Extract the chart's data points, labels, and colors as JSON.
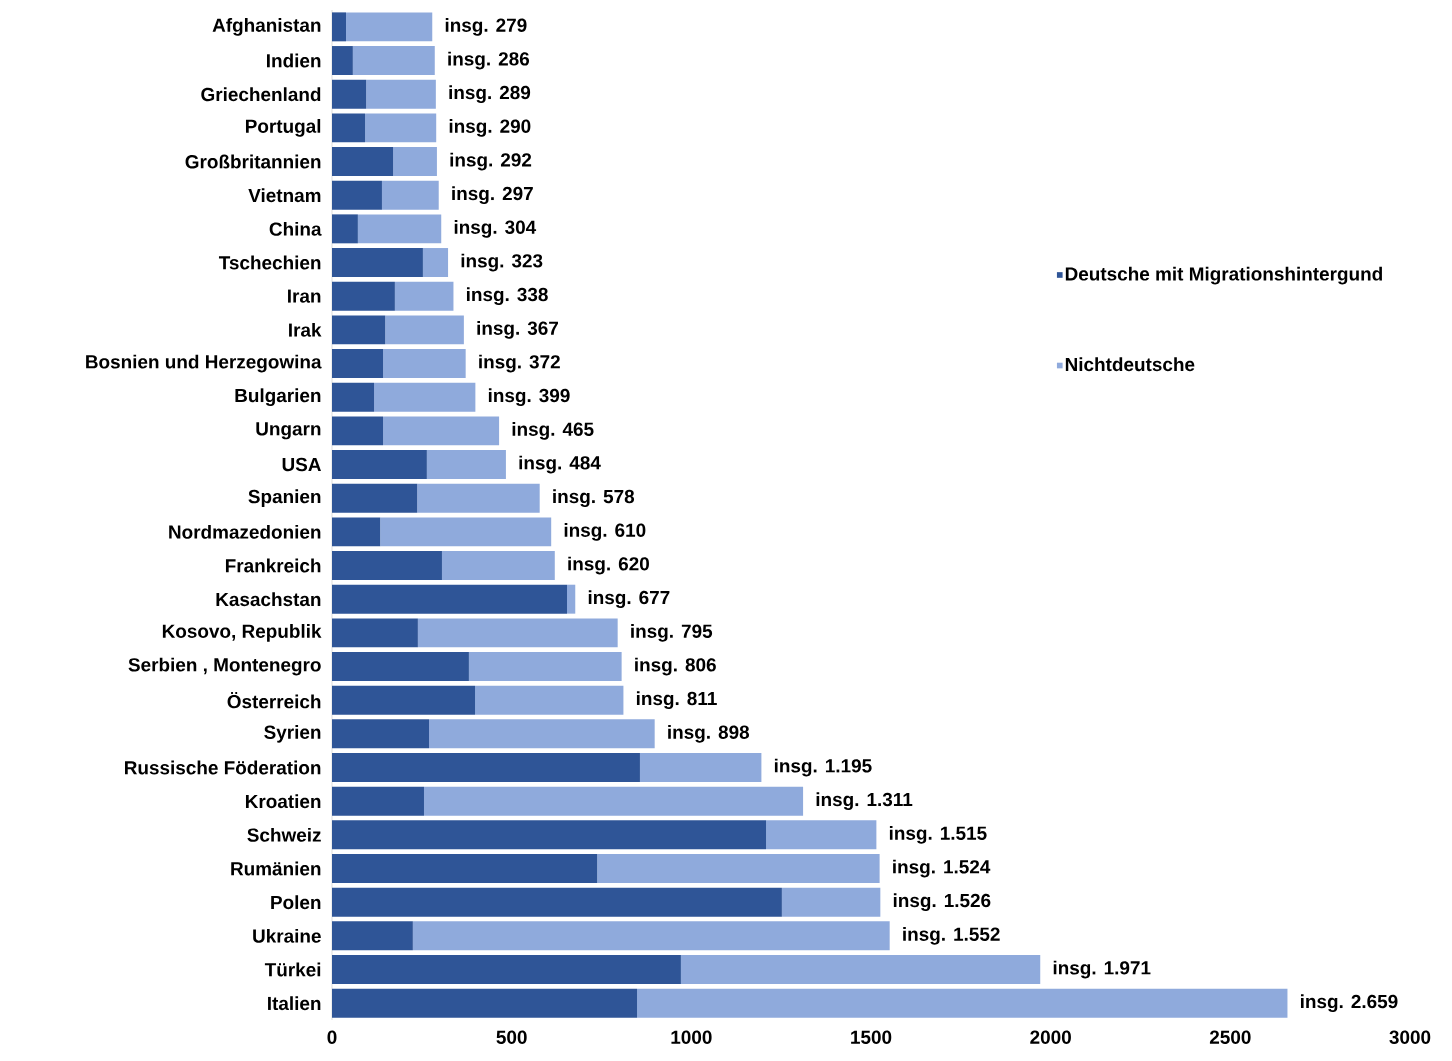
{
  "chart_data": {
    "type": "bar",
    "orientation": "horizontal",
    "stacked": true,
    "categories": [
      "Afghanistan",
      "Indien",
      "Griechenland",
      "Portugal",
      "Großbritannien",
      "Vietnam",
      "China",
      "Tschechien",
      "Iran",
      "Irak",
      "Bosnien und Herzegowina",
      "Bulgarien",
      "Ungarn",
      "USA",
      "Spanien",
      "Nordmazedonien",
      "Frankreich",
      "Kasachstan",
      "Kosovo, Republik",
      "Serbien , Montenegro",
      "Österreich",
      "Syrien",
      "Russische Föderation",
      "Kroatien",
      "Schweiz",
      "Rumänien",
      "Polen",
      "Ukraine",
      "Türkei",
      "Italien"
    ],
    "series": [
      {
        "name": "Deutsche mit Migrationshintergund",
        "color": "#2f5597",
        "values": [
          39,
          58,
          95,
          92,
          170,
          139,
          72,
          253,
          175,
          148,
          142,
          117,
          142,
          264,
          237,
          134,
          306,
          654,
          239,
          381,
          398,
          270,
          857,
          256,
          1208,
          738,
          1252,
          225,
          971,
          849
        ]
      },
      {
        "name": "Nichtdeutsche",
        "color": "#8faadc",
        "values": [
          240,
          228,
          194,
          198,
          122,
          158,
          232,
          70,
          163,
          219,
          230,
          282,
          323,
          220,
          341,
          476,
          314,
          23,
          556,
          425,
          413,
          628,
          338,
          1055,
          307,
          786,
          274,
          1327,
          1000,
          1810
        ]
      }
    ],
    "totals": [
      "insg. 279",
      "insg. 286",
      "insg. 289",
      "insg. 290",
      "insg. 292",
      "insg. 297",
      "insg. 304",
      "insg. 323",
      "insg. 338",
      "insg. 367",
      "insg. 372",
      "insg. 399",
      "insg. 465",
      "insg. 484",
      "insg. 578",
      "insg. 610",
      "insg. 620",
      "insg. 677",
      "insg. 795",
      "insg. 806",
      "insg. 811",
      "insg. 898",
      "insg. 1.195",
      "insg. 1.311",
      "insg. 1.515",
      "insg. 1.524",
      "insg. 1.526",
      "insg. 1.552",
      "insg. 1.971",
      "insg. 2.659"
    ],
    "xlim": [
      0,
      3000
    ],
    "xticks": [
      0,
      500,
      1000,
      1500,
      2000,
      2500,
      3000
    ],
    "legend": "right"
  }
}
